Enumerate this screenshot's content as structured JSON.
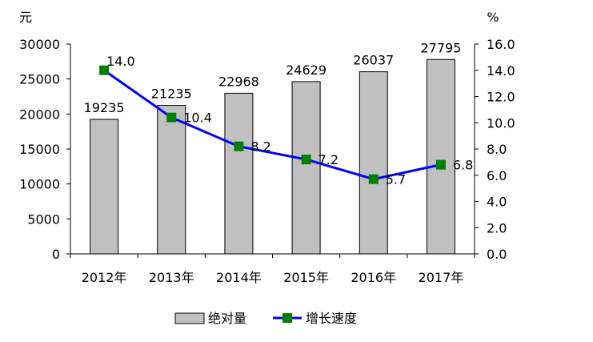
{
  "chart_data": {
    "type": "bar+line",
    "categories": [
      "2012年",
      "2013年",
      "2014年",
      "2015年",
      "2016年",
      "2017年"
    ],
    "series": [
      {
        "name": "绝对量",
        "type": "bar",
        "axis": "left",
        "values": [
          19235,
          21235,
          22968,
          24629,
          26037,
          27795
        ],
        "color": "#c0c0c0"
      },
      {
        "name": "增长速度",
        "type": "line",
        "axis": "right",
        "values": [
          14.0,
          10.4,
          8.2,
          7.2,
          5.7,
          6.8
        ],
        "color": "#0000ff",
        "marker_color": "#008000"
      }
    ],
    "bar_labels": [
      "19235",
      "21235",
      "22968",
      "24629",
      "26037",
      "27795"
    ],
    "line_labels": [
      "14.0",
      "10.4",
      "8.2",
      "7.2",
      "5.7",
      "6.8"
    ],
    "y_left": {
      "unit": "元",
      "ylim": [
        0,
        30000
      ],
      "ticks": [
        "0",
        "5000",
        "10000",
        "15000",
        "20000",
        "25000",
        "30000"
      ]
    },
    "y_right": {
      "unit": "%",
      "ylim": [
        0,
        16
      ],
      "ticks": [
        "0.0",
        "2.0",
        "4.0",
        "6.0",
        "8.0",
        "10.0",
        "12.0",
        "14.0",
        "16.0"
      ]
    },
    "grid": false,
    "legend_position": "bottom"
  }
}
